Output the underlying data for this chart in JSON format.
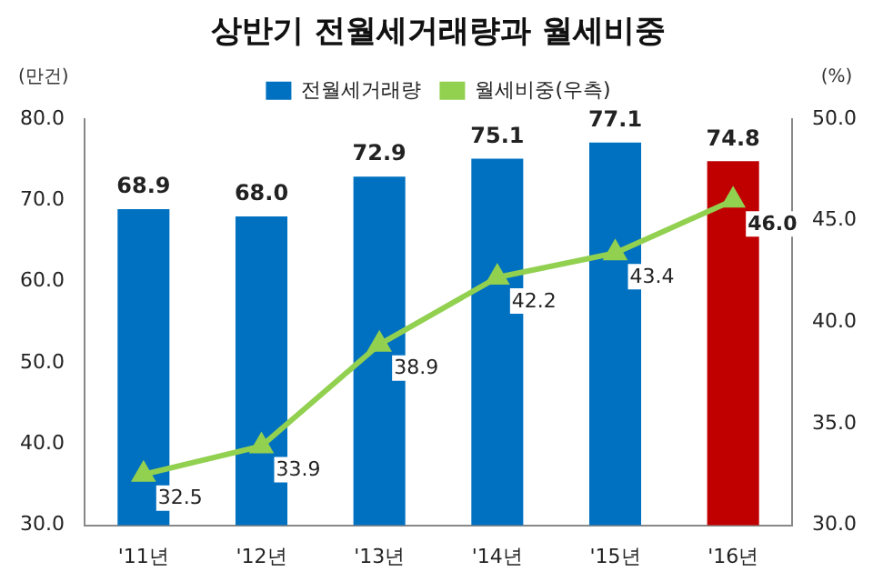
{
  "chart_data": {
    "type": "bar",
    "title": "상반기 전월세거래량과 월세비중",
    "ylabel": "(만건)",
    "y2label": "(%)",
    "categories": [
      "'11년",
      "'12년",
      "'13년",
      "'14년",
      "'15년",
      "'16년"
    ],
    "series": [
      {
        "name": "전월세거래량",
        "color": "#0070c0",
        "colors": [
          "#0070c0",
          "#0070c0",
          "#0070c0",
          "#0070c0",
          "#0070c0",
          "#c00000"
        ],
        "values": [
          68.9,
          68.0,
          72.9,
          75.1,
          77.1,
          74.8
        ],
        "value_labels": [
          "68.9",
          "68.0",
          "72.9",
          "75.1",
          "77.1",
          "74.8"
        ]
      },
      {
        "name": "월세비중(우측)",
        "type": "line",
        "axis": "y2",
        "color": "#92d050",
        "marker": "triangle",
        "values": [
          32.5,
          33.9,
          38.9,
          42.2,
          43.4,
          46.0
        ],
        "value_labels": [
          "32.5",
          "33.9",
          "38.9",
          "42.2",
          "43.4",
          "46.0"
        ]
      }
    ],
    "ylim": [
      30,
      80
    ],
    "yticks": [
      {
        "value": 30,
        "label": "30.0"
      },
      {
        "value": 40,
        "label": "40.0"
      },
      {
        "value": 50,
        "label": "50.0"
      },
      {
        "value": 60,
        "label": "60.0"
      },
      {
        "value": 70,
        "label": "70.0"
      },
      {
        "value": 80,
        "label": "80.0"
      }
    ],
    "y2lim": [
      30,
      50
    ],
    "y2ticks": [
      {
        "value": 30,
        "label": "30.0"
      },
      {
        "value": 35,
        "label": "35.0"
      },
      {
        "value": 40,
        "label": "40.0"
      },
      {
        "value": 45,
        "label": "45.0"
      },
      {
        "value": 50,
        "label": "50.0"
      }
    ],
    "legend": "top",
    "grid": false
  }
}
